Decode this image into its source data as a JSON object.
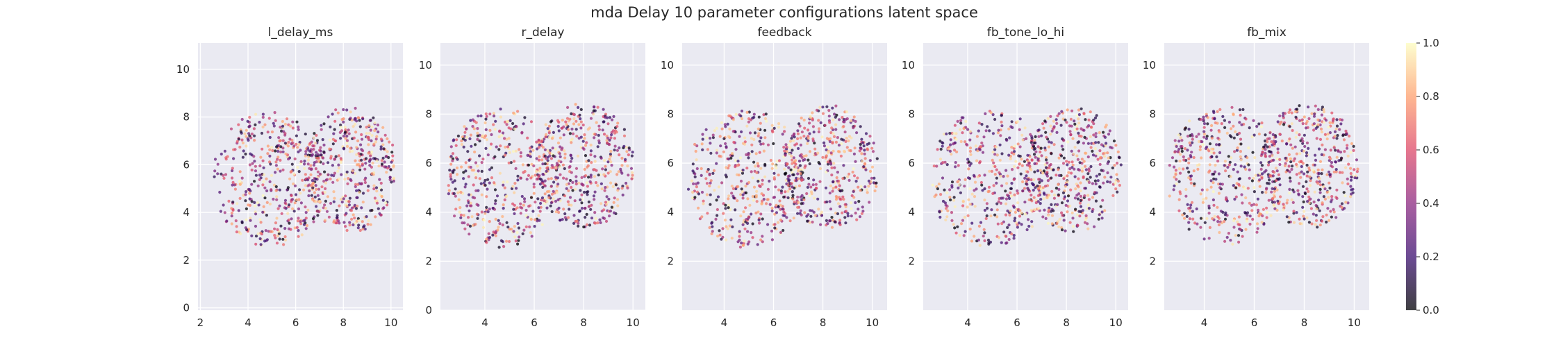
{
  "figure": {
    "title": "mda Delay 10 parameter configurations latent space"
  },
  "colormap": {
    "name": "magma",
    "stops": [
      "#000004",
      "#3b0f70",
      "#8c2981",
      "#de4968",
      "#fe9f6d",
      "#fcfdbf"
    ],
    "alpha": 0.75
  },
  "colorbar": {
    "min": 0.0,
    "max": 1.0,
    "ticks": [
      "0.0",
      "0.2",
      "0.4",
      "0.6",
      "0.8",
      "1.0"
    ]
  },
  "chart_data": [
    {
      "type": "scatter",
      "title": "l_delay_ms",
      "xlim": [
        1.9,
        10.5
      ],
      "ylim": [
        -0.1,
        11.1
      ],
      "xticks": [
        "2",
        "4",
        "6",
        "8",
        "10"
      ],
      "yticks": [
        "0",
        "2",
        "4",
        "6",
        "8",
        "10"
      ],
      "grid": true,
      "points_per_cluster": 420,
      "clusters": [
        {
          "cx": 4.9,
          "cy": 5.4,
          "rx": 2.4,
          "ry": 2.85
        },
        {
          "cx": 8.3,
          "cy": 5.8,
          "rx": 1.95,
          "ry": 2.65
        }
      ],
      "x_range": [
        2.3,
        10.2
      ],
      "y_range": [
        2.5,
        8.5
      ]
    },
    {
      "type": "scatter",
      "title": "r_delay",
      "xlim": [
        2.2,
        10.5
      ],
      "ylim": [
        0.0,
        10.9
      ],
      "xticks": [
        "4",
        "6",
        "8",
        "10"
      ],
      "yticks": [
        "0",
        "2",
        "4",
        "6",
        "8",
        "10"
      ],
      "grid": true,
      "points_per_cluster": 420,
      "clusters": [
        {
          "cx": 4.7,
          "cy": 5.4,
          "rx": 2.35,
          "ry": 2.85
        },
        {
          "cx": 8.0,
          "cy": 5.9,
          "rx": 2.05,
          "ry": 2.55
        }
      ],
      "x_range": [
        2.5,
        10.3
      ],
      "y_range": [
        2.5,
        8.4
      ]
    },
    {
      "type": "scatter",
      "title": "feedback",
      "xlim": [
        2.3,
        10.6
      ],
      "ylim": [
        0.0,
        10.9
      ],
      "xticks": [
        "4",
        "6",
        "8",
        "10"
      ],
      "yticks": [
        "2",
        "4",
        "6",
        "8",
        "10"
      ],
      "grid": true,
      "points_per_cluster": 420,
      "clusters": [
        {
          "cx": 4.9,
          "cy": 5.4,
          "rx": 2.4,
          "ry": 2.85
        },
        {
          "cx": 8.3,
          "cy": 5.8,
          "rx": 1.95,
          "ry": 2.6
        }
      ],
      "x_range": [
        2.5,
        10.2
      ],
      "y_range": [
        2.4,
        8.5
      ]
    },
    {
      "type": "scatter",
      "title": "fb_tone_lo_hi",
      "xlim": [
        2.2,
        10.5
      ],
      "ylim": [
        0.0,
        10.9
      ],
      "xticks": [
        "4",
        "6",
        "8",
        "10"
      ],
      "yticks": [
        "2",
        "4",
        "6",
        "8",
        "10"
      ],
      "grid": true,
      "points_per_cluster": 420,
      "clusters": [
        {
          "cx": 4.9,
          "cy": 5.4,
          "rx": 2.45,
          "ry": 2.85
        },
        {
          "cx": 8.3,
          "cy": 5.7,
          "rx": 1.95,
          "ry": 2.55
        }
      ],
      "x_range": [
        2.5,
        10.3
      ],
      "y_range": [
        2.5,
        8.4
      ]
    },
    {
      "type": "scatter",
      "title": "fb_mix",
      "xlim": [
        2.4,
        10.6
      ],
      "ylim": [
        0.0,
        10.9
      ],
      "xticks": [
        "4",
        "6",
        "8",
        "10"
      ],
      "yticks": [
        "2",
        "4",
        "6",
        "8",
        "10"
      ],
      "grid": true,
      "points_per_cluster": 420,
      "clusters": [
        {
          "cx": 4.8,
          "cy": 5.5,
          "rx": 2.3,
          "ry": 2.85
        },
        {
          "cx": 8.2,
          "cy": 5.9,
          "rx": 1.95,
          "ry": 2.55
        }
      ],
      "x_range": [
        2.6,
        10.3
      ],
      "y_range": [
        2.4,
        8.4
      ]
    }
  ]
}
